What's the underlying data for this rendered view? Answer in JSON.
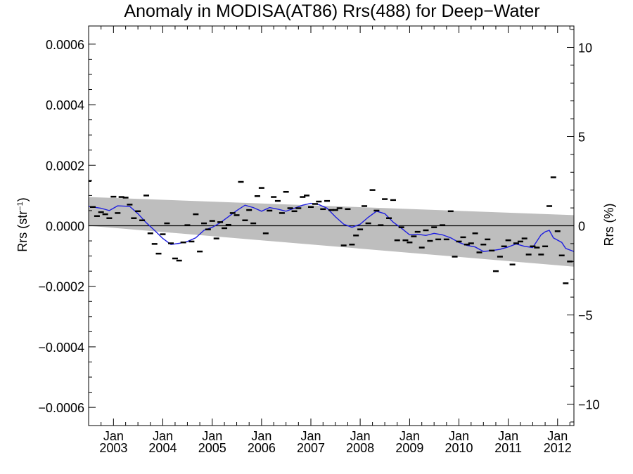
{
  "chart_data": {
    "type": "scatter",
    "title": "Anomaly in MODISA(AT86) Rrs(488) for Deep−Water",
    "ylabel_main": "Rrs (str",
    "ylabel_sup": "−1",
    "ylabel_close": ")",
    "ylabel_right": "Rrs (%)",
    "x_range": [
      "2002-07-01",
      "2012-05-01"
    ],
    "ylim": [
      -0.00066,
      0.00066
    ],
    "ylim_right": [
      -11.2,
      11.2
    ],
    "y_ticks": [
      {
        "value": 0.0006,
        "label": "0.0006"
      },
      {
        "value": 0.0004,
        "label": "0.0004"
      },
      {
        "value": 0.0002,
        "label": "0.0002"
      },
      {
        "value": 0.0,
        "label": "0.0000"
      },
      {
        "value": -0.0002,
        "label": "−0.0002"
      },
      {
        "value": -0.0004,
        "label": "−0.0004"
      },
      {
        "value": -0.0006,
        "label": "−0.0006"
      }
    ],
    "y_right_ticks": [
      {
        "value": 10,
        "label": "10"
      },
      {
        "value": 5,
        "label": "5"
      },
      {
        "value": 0,
        "label": "0"
      },
      {
        "value": -5,
        "label": "−5"
      },
      {
        "value": -10,
        "label": "−10"
      }
    ],
    "x_ticks": [
      {
        "date": "2003-01-01",
        "month": "Jan",
        "year": "2003"
      },
      {
        "date": "2004-01-01",
        "month": "Jan",
        "year": "2004"
      },
      {
        "date": "2005-01-01",
        "month": "Jan",
        "year": "2005"
      },
      {
        "date": "2006-01-01",
        "month": "Jan",
        "year": "2006"
      },
      {
        "date": "2007-01-01",
        "month": "Jan",
        "year": "2007"
      },
      {
        "date": "2008-01-01",
        "month": "Jan",
        "year": "2008"
      },
      {
        "date": "2009-01-01",
        "month": "Jan",
        "year": "2009"
      },
      {
        "date": "2010-01-01",
        "month": "Jan",
        "year": "2010"
      },
      {
        "date": "2011-01-01",
        "month": "Jan",
        "year": "2011"
      },
      {
        "date": "2012-01-01",
        "month": "Jan",
        "year": "2012"
      }
    ],
    "band": {
      "color": "#bebebe",
      "upper": [
        {
          "date": "2002-07-01",
          "y": 9.5e-05
        },
        {
          "date": "2012-05-01",
          "y": 3.5e-05
        }
      ],
      "lower": [
        {
          "date": "2002-07-01",
          "y": 0.0
        },
        {
          "date": "2012-05-01",
          "y": -0.000135
        }
      ]
    },
    "zero_line": 0.0,
    "points_color": "#000000",
    "points": [
      {
        "date": "2002-07-01",
        "y": 0.000148
      },
      {
        "date": "2002-08-01",
        "y": 6.2e-05
      },
      {
        "date": "2002-09-01",
        "y": 3.2e-05
      },
      {
        "date": "2002-10-01",
        "y": 4.5e-05
      },
      {
        "date": "2002-11-01",
        "y": 3.8e-05
      },
      {
        "date": "2002-12-01",
        "y": 2.5e-05
      },
      {
        "date": "2003-01-01",
        "y": 9.6e-05
      },
      {
        "date": "2003-02-01",
        "y": 4.2e-05
      },
      {
        "date": "2003-03-01",
        "y": 9.5e-05
      },
      {
        "date": "2003-04-01",
        "y": 9.3e-05
      },
      {
        "date": "2003-05-01",
        "y": 7e-05
      },
      {
        "date": "2003-06-01",
        "y": 2.5e-05
      },
      {
        "date": "2003-07-01",
        "y": 4.8e-05
      },
      {
        "date": "2003-08-01",
        "y": 1.8e-05
      },
      {
        "date": "2003-09-01",
        "y": 0.0001
      },
      {
        "date": "2003-10-01",
        "y": -2.5e-05
      },
      {
        "date": "2003-11-01",
        "y": -6e-05
      },
      {
        "date": "2003-12-01",
        "y": -9.2e-05
      },
      {
        "date": "2004-01-01",
        "y": -2.8e-05
      },
      {
        "date": "2004-02-01",
        "y": 8e-06
      },
      {
        "date": "2004-03-01",
        "y": -5.8e-05
      },
      {
        "date": "2004-04-01",
        "y": -0.000108
      },
      {
        "date": "2004-05-01",
        "y": -0.000115
      },
      {
        "date": "2004-06-01",
        "y": -5.5e-05
      },
      {
        "date": "2004-07-01",
        "y": 2e-06
      },
      {
        "date": "2004-08-01",
        "y": -5.2e-05
      },
      {
        "date": "2004-09-01",
        "y": 3.8e-05
      },
      {
        "date": "2004-10-01",
        "y": -8.5e-05
      },
      {
        "date": "2004-11-01",
        "y": 8e-06
      },
      {
        "date": "2004-12-01",
        "y": -1.2e-05
      },
      {
        "date": "2005-01-01",
        "y": 1.6e-05
      },
      {
        "date": "2005-02-01",
        "y": -4.2e-05
      },
      {
        "date": "2005-03-01",
        "y": 1.2e-05
      },
      {
        "date": "2005-04-01",
        "y": -8e-06
      },
      {
        "date": "2005-05-01",
        "y": 3e-06
      },
      {
        "date": "2005-06-01",
        "y": 4.2e-05
      },
      {
        "date": "2005-07-01",
        "y": 3.5e-05
      },
      {
        "date": "2005-08-01",
        "y": 0.000145
      },
      {
        "date": "2005-09-01",
        "y": 1.8e-05
      },
      {
        "date": "2005-10-01",
        "y": 5.2e-05
      },
      {
        "date": "2005-11-01",
        "y": 8e-06
      },
      {
        "date": "2005-12-01",
        "y": 9.8e-05
      },
      {
        "date": "2006-01-01",
        "y": 0.000125
      },
      {
        "date": "2006-02-01",
        "y": -2.5e-05
      },
      {
        "date": "2006-03-01",
        "y": 5e-05
      },
      {
        "date": "2006-04-01",
        "y": 9.5e-05
      },
      {
        "date": "2006-05-01",
        "y": 8.2e-05
      },
      {
        "date": "2006-06-01",
        "y": 4.2e-05
      },
      {
        "date": "2006-07-01",
        "y": 0.000112
      },
      {
        "date": "2006-08-01",
        "y": 5.8e-05
      },
      {
        "date": "2006-09-01",
        "y": 4.8e-05
      },
      {
        "date": "2006-10-01",
        "y": 5.8e-05
      },
      {
        "date": "2006-11-01",
        "y": 9.5e-05
      },
      {
        "date": "2006-12-01",
        "y": 0.0001
      },
      {
        "date": "2007-01-01",
        "y": 6.2e-05
      },
      {
        "date": "2007-02-01",
        "y": 7.2e-05
      },
      {
        "date": "2007-03-01",
        "y": 8e-05
      },
      {
        "date": "2007-04-01",
        "y": 5.5e-05
      },
      {
        "date": "2007-05-01",
        "y": 8.2e-05
      },
      {
        "date": "2007-06-01",
        "y": 5.2e-05
      },
      {
        "date": "2007-07-01",
        "y": 5.2e-05
      },
      {
        "date": "2007-08-01",
        "y": 5.8e-05
      },
      {
        "date": "2007-09-01",
        "y": -6.5e-05
      },
      {
        "date": "2007-10-01",
        "y": 5.5e-05
      },
      {
        "date": "2007-11-01",
        "y": -6.2e-05
      },
      {
        "date": "2007-12-01",
        "y": -3.2e-05
      },
      {
        "date": "2008-01-01",
        "y": -1.2e-05
      },
      {
        "date": "2008-02-01",
        "y": 6.5e-05
      },
      {
        "date": "2008-03-01",
        "y": 8e-06
      },
      {
        "date": "2008-04-01",
        "y": 0.000118
      },
      {
        "date": "2008-05-01",
        "y": 5e-05
      },
      {
        "date": "2008-06-01",
        "y": 2e-06
      },
      {
        "date": "2008-07-01",
        "y": 8.8e-05
      },
      {
        "date": "2008-08-01",
        "y": 2.5e-05
      },
      {
        "date": "2008-09-01",
        "y": 8.5e-05
      },
      {
        "date": "2008-10-01",
        "y": -4.8e-05
      },
      {
        "date": "2008-11-01",
        "y": -5e-06
      },
      {
        "date": "2008-12-01",
        "y": -4.8e-05
      },
      {
        "date": "2009-01-01",
        "y": -5.5e-05
      },
      {
        "date": "2009-02-01",
        "y": -3.5e-05
      },
      {
        "date": "2009-03-01",
        "y": -2e-05
      },
      {
        "date": "2009-04-01",
        "y": -7.2e-05
      },
      {
        "date": "2009-05-01",
        "y": -1.5e-05
      },
      {
        "date": "2009-06-01",
        "y": -5e-05
      },
      {
        "date": "2009-07-01",
        "y": -5e-06
      },
      {
        "date": "2009-08-01",
        "y": -4.5e-05
      },
      {
        "date": "2009-09-01",
        "y": 2e-06
      },
      {
        "date": "2009-10-01",
        "y": -4.5e-05
      },
      {
        "date": "2009-11-01",
        "y": 4.8e-05
      },
      {
        "date": "2009-12-01",
        "y": -0.000102
      },
      {
        "date": "2010-01-01",
        "y": -5.2e-05
      },
      {
        "date": "2010-02-01",
        "y": -3.8e-05
      },
      {
        "date": "2010-03-01",
        "y": -6.2e-05
      },
      {
        "date": "2010-04-01",
        "y": -5.8e-05
      },
      {
        "date": "2010-05-01",
        "y": -2.5e-05
      },
      {
        "date": "2010-06-01",
        "y": -8.8e-05
      },
      {
        "date": "2010-07-01",
        "y": -6.2e-05
      },
      {
        "date": "2010-08-01",
        "y": -4.5e-05
      },
      {
        "date": "2010-09-01",
        "y": -8.2e-05
      },
      {
        "date": "2010-10-01",
        "y": -0.00015
      },
      {
        "date": "2010-11-01",
        "y": -0.000102
      },
      {
        "date": "2010-12-01",
        "y": -6.8e-05
      },
      {
        "date": "2011-01-01",
        "y": -4.8e-05
      },
      {
        "date": "2011-02-01",
        "y": -0.000128
      },
      {
        "date": "2011-03-01",
        "y": -5.8e-05
      },
      {
        "date": "2011-04-01",
        "y": -5.2e-05
      },
      {
        "date": "2011-05-01",
        "y": -4.2e-05
      },
      {
        "date": "2011-06-01",
        "y": -9.5e-05
      },
      {
        "date": "2011-07-01",
        "y": -6.8e-05
      },
      {
        "date": "2011-08-01",
        "y": -7.2e-05
      },
      {
        "date": "2011-09-01",
        "y": -9.5e-05
      },
      {
        "date": "2011-10-01",
        "y": -6.8e-05
      },
      {
        "date": "2011-11-01",
        "y": 6.5e-05
      },
      {
        "date": "2011-12-01",
        "y": 0.00016
      },
      {
        "date": "2012-01-01",
        "y": -1.8e-05
      },
      {
        "date": "2012-02-01",
        "y": -9.8e-05
      },
      {
        "date": "2012-03-01",
        "y": -0.00019
      },
      {
        "date": "2012-04-01",
        "y": -0.000118
      }
    ],
    "smooth_line": {
      "color": "#1f1fe0",
      "values": [
        {
          "date": "2002-07-01",
          "y": 6.4e-05
        },
        {
          "date": "2002-10-01",
          "y": 5.8e-05
        },
        {
          "date": "2002-12-01",
          "y": 5e-05
        },
        {
          "date": "2003-02-01",
          "y": 6.6e-05
        },
        {
          "date": "2003-05-01",
          "y": 6.4e-05
        },
        {
          "date": "2003-07-01",
          "y": 4e-05
        },
        {
          "date": "2003-09-01",
          "y": 1e-05
        },
        {
          "date": "2003-11-01",
          "y": -1.5e-05
        },
        {
          "date": "2004-01-01",
          "y": -4.2e-05
        },
        {
          "date": "2004-03-01",
          "y": -6.2e-05
        },
        {
          "date": "2004-05-01",
          "y": -5.8e-05
        },
        {
          "date": "2004-07-01",
          "y": -5.2e-05
        },
        {
          "date": "2004-09-01",
          "y": -4e-05
        },
        {
          "date": "2004-11-01",
          "y": -1.5e-05
        },
        {
          "date": "2005-01-01",
          "y": -5e-06
        },
        {
          "date": "2005-03-01",
          "y": 1e-05
        },
        {
          "date": "2005-05-01",
          "y": 3e-05
        },
        {
          "date": "2005-07-01",
          "y": 5e-05
        },
        {
          "date": "2005-09-01",
          "y": 6.8e-05
        },
        {
          "date": "2005-11-01",
          "y": 6e-05
        },
        {
          "date": "2006-01-01",
          "y": 4.8e-05
        },
        {
          "date": "2006-03-01",
          "y": 6e-05
        },
        {
          "date": "2006-05-01",
          "y": 5.5e-05
        },
        {
          "date": "2006-07-01",
          "y": 4.8e-05
        },
        {
          "date": "2006-09-01",
          "y": 5.8e-05
        },
        {
          "date": "2006-11-01",
          "y": 6.8e-05
        },
        {
          "date": "2007-01-01",
          "y": 7.4e-05
        },
        {
          "date": "2007-03-01",
          "y": 7e-05
        },
        {
          "date": "2007-05-01",
          "y": 5.8e-05
        },
        {
          "date": "2007-07-01",
          "y": 3e-05
        },
        {
          "date": "2007-09-01",
          "y": 5e-06
        },
        {
          "date": "2007-11-01",
          "y": -5e-06
        },
        {
          "date": "2008-01-01",
          "y": 5e-06
        },
        {
          "date": "2008-03-01",
          "y": 2.8e-05
        },
        {
          "date": "2008-05-01",
          "y": 4.8e-05
        },
        {
          "date": "2008-07-01",
          "y": 4e-05
        },
        {
          "date": "2008-09-01",
          "y": 1.2e-05
        },
        {
          "date": "2008-11-01",
          "y": -8e-06
        },
        {
          "date": "2009-01-01",
          "y": -3e-05
        },
        {
          "date": "2009-03-01",
          "y": -2.8e-05
        },
        {
          "date": "2009-05-01",
          "y": -3.2e-05
        },
        {
          "date": "2009-07-01",
          "y": -2.5e-05
        },
        {
          "date": "2009-09-01",
          "y": -3e-05
        },
        {
          "date": "2009-11-01",
          "y": -4e-05
        },
        {
          "date": "2010-01-01",
          "y": -5.5e-05
        },
        {
          "date": "2010-03-01",
          "y": -6.5e-05
        },
        {
          "date": "2010-05-01",
          "y": -7e-05
        },
        {
          "date": "2010-07-01",
          "y": -8.5e-05
        },
        {
          "date": "2010-09-01",
          "y": -8.2e-05
        },
        {
          "date": "2010-11-01",
          "y": -7.8e-05
        },
        {
          "date": "2011-01-01",
          "y": -7e-05
        },
        {
          "date": "2011-03-01",
          "y": -6e-05
        },
        {
          "date": "2011-05-01",
          "y": -6.8e-05
        },
        {
          "date": "2011-07-01",
          "y": -7.2e-05
        },
        {
          "date": "2011-09-01",
          "y": -3e-05
        },
        {
          "date": "2011-10-01",
          "y": -2e-05
        },
        {
          "date": "2011-11-01",
          "y": -1.5e-05
        },
        {
          "date": "2011-12-01",
          "y": -4e-05
        },
        {
          "date": "2012-02-01",
          "y": -5.5e-05
        },
        {
          "date": "2012-03-01",
          "y": -7.5e-05
        },
        {
          "date": "2012-05-01",
          "y": -8.5e-05
        }
      ]
    },
    "grid": false,
    "legend": "none"
  }
}
